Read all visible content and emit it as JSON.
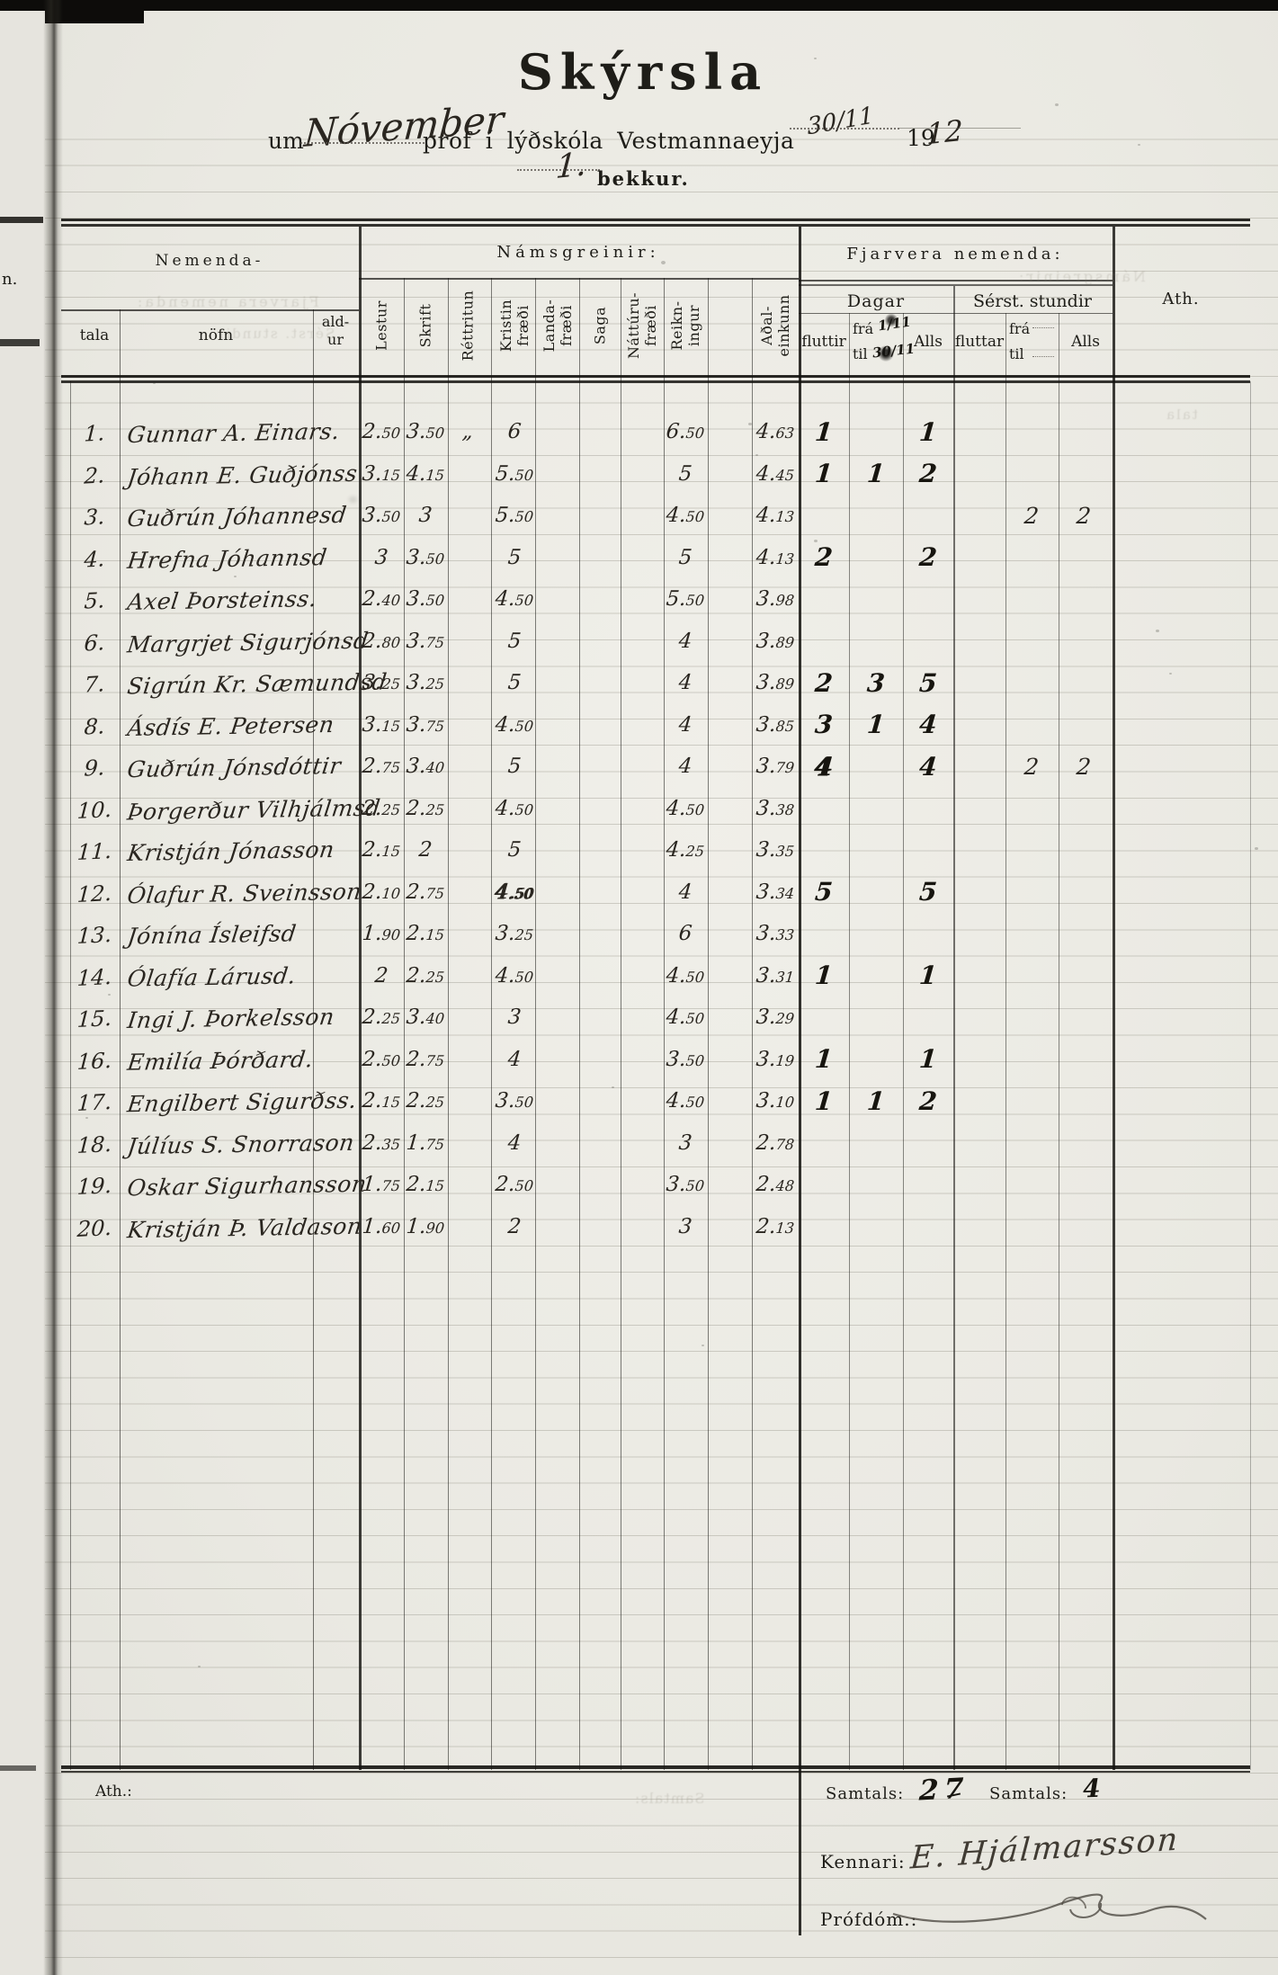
{
  "page": {
    "title": "Skýrsla",
    "subtitle_prefix": "um",
    "subtitle_month": "Nóvember",
    "subtitle_mid": "próf í lýðskóla Vestmannaeyja",
    "subtitle_date": "30/11",
    "year_printed": "19",
    "year_hand": "12",
    "class_number": "1.",
    "class_label": "bekkur."
  },
  "margin": {
    "fragment_text": "n."
  },
  "header": {
    "group_students": "Nemenda-",
    "col_tala": "tala",
    "col_nofn": "nöfn",
    "col_aldur_line1": "ald-",
    "col_aldur_line2": "ur",
    "group_subjects": "Námsgreinir:",
    "subjects": [
      "Lestur",
      "Skrift",
      "Réttritun",
      "Kristin\nfræði",
      "Landa-\nfræði",
      "Saga",
      "Náttúru-\nfræði",
      "Reikn-\ningur",
      "",
      "Aðal-\neinkunn"
    ],
    "group_absence": "Fjarvera nemenda:",
    "absence_days": "Dagar",
    "absence_hours": "Sérst. stundir",
    "days_fluttir": "fluttir",
    "days_fra": "frá",
    "days_til": "til",
    "days_fra_value": "1/11",
    "days_til_value": "30/11",
    "days_alls": "Alls",
    "hours_fluttar": "fluttar",
    "hours_fra": "frá",
    "hours_til": "til",
    "hours_alls": "Alls",
    "col_ath": "Ath."
  },
  "rows": [
    {
      "num": "1.",
      "name": "Gunnar A. Einars.",
      "lestur": "2.50",
      "skrift": "3.50",
      "rettritun": "„",
      "kristin": "6",
      "landafraedi": "",
      "saga": "",
      "natturufraedi": "",
      "reikningur": "6.50",
      "adaleinkunn": "4.63",
      "d_fluttir": "1",
      "d_fra_til": "",
      "d_alls": "1",
      "s_fluttar": "",
      "s_fra_til": "",
      "s_alls": "",
      "ath": ""
    },
    {
      "num": "2.",
      "name": "Jóhann E. Guðjónss",
      "lestur": "3.15",
      "skrift": "4.15",
      "rettritun": "",
      "kristin": "5.50",
      "landafraedi": "",
      "saga": "",
      "natturufraedi": "",
      "reikningur": "5",
      "adaleinkunn": "4.45",
      "d_fluttir": "1",
      "d_fra_til": "1",
      "d_alls": "2",
      "s_fluttar": "",
      "s_fra_til": "",
      "s_alls": "",
      "ath": ""
    },
    {
      "num": "3.",
      "name": "Guðrún Jóhannesd",
      "lestur": "3.50",
      "skrift": "3",
      "rettritun": "",
      "kristin": "5.50",
      "landafraedi": "",
      "saga": "",
      "natturufraedi": "",
      "reikningur": "4.50",
      "adaleinkunn": "4.13",
      "d_fluttir": "",
      "d_fra_til": "",
      "d_alls": "",
      "s_fluttar": "",
      "s_fra_til": "2",
      "s_alls": "2",
      "ath": ""
    },
    {
      "num": "4.",
      "name": "Hrefna Jóhannsd",
      "lestur": "3",
      "skrift": "3.50",
      "rettritun": "",
      "kristin": "5",
      "landafraedi": "",
      "saga": "",
      "natturufraedi": "",
      "reikningur": "5",
      "adaleinkunn": "4.13",
      "d_fluttir": "2",
      "d_fra_til": "",
      "d_alls": "2",
      "s_fluttar": "",
      "s_fra_til": "",
      "s_alls": "",
      "ath": ""
    },
    {
      "num": "5.",
      "name": "Axel Þorsteinss.",
      "lestur": "2.40",
      "skrift": "3.50",
      "rettritun": "",
      "kristin": "4.50",
      "landafraedi": "",
      "saga": "",
      "natturufraedi": "",
      "reikningur": "5.50",
      "adaleinkunn": "3.98",
      "d_fluttir": "",
      "d_fra_til": "",
      "d_alls": "",
      "s_fluttar": "",
      "s_fra_til": "",
      "s_alls": "",
      "ath": ""
    },
    {
      "num": "6.",
      "name": "Margrjet Sigurjónsd",
      "lestur": "2.80",
      "skrift": "3.75",
      "rettritun": "",
      "kristin": "5",
      "landafraedi": "",
      "saga": "",
      "natturufraedi": "",
      "reikningur": "4",
      "adaleinkunn": "3.89",
      "d_fluttir": "",
      "d_fra_til": "",
      "d_alls": "",
      "s_fluttar": "",
      "s_fra_til": "",
      "s_alls": "",
      "ath": ""
    },
    {
      "num": "7.",
      "name": "Sigrún Kr. Sæmundsd",
      "lestur": "3.25",
      "skrift": "3.25",
      "rettritun": "",
      "kristin": "5",
      "landafraedi": "",
      "saga": "",
      "natturufraedi": "",
      "reikningur": "4",
      "adaleinkunn": "3.89",
      "d_fluttir": "2",
      "d_fra_til": "3",
      "d_alls": "5",
      "s_fluttar": "",
      "s_fra_til": "",
      "s_alls": "",
      "ath": ""
    },
    {
      "num": "8.",
      "name": "Ásdís E. Petersen",
      "lestur": "3.15",
      "skrift": "3.75",
      "rettritun": "",
      "kristin": "4.50",
      "landafraedi": "",
      "saga": "",
      "natturufraedi": "",
      "reikningur": "4",
      "adaleinkunn": "3.85",
      "d_fluttir": "3",
      "d_fra_til": "1",
      "d_alls": "4",
      "s_fluttar": "",
      "s_fra_til": "",
      "s_alls": "",
      "ath": ""
    },
    {
      "num": "9.",
      "name": "Guðrún Jónsdóttir",
      "lestur": "2.75",
      "skrift": "3.40",
      "rettritun": "",
      "kristin": "5",
      "landafraedi": "",
      "saga": "",
      "natturufraedi": "",
      "reikningur": "4",
      "adaleinkunn": "3.79",
      "d_fluttir": "4",
      "d_fra_til": "",
      "d_alls": "4",
      "s_fluttar": "",
      "s_fra_til": "2",
      "s_alls": "2",
      "ath": "",
      "bold_cells": [
        "d_fluttir"
      ]
    },
    {
      "num": "10.",
      "name": "Þorgerður Vilhjálmsd",
      "lestur": "2.25",
      "skrift": "2.25",
      "rettritun": "",
      "kristin": "4.50",
      "landafraedi": "",
      "saga": "",
      "natturufraedi": "",
      "reikningur": "4.50",
      "adaleinkunn": "3.38",
      "d_fluttir": "",
      "d_fra_til": "",
      "d_alls": "",
      "s_fluttar": "",
      "s_fra_til": "",
      "s_alls": "",
      "ath": ""
    },
    {
      "num": "11.",
      "name": "Kristján Jónasson",
      "lestur": "2.15",
      "skrift": "2",
      "rettritun": "",
      "kristin": "5",
      "landafraedi": "",
      "saga": "",
      "natturufraedi": "",
      "reikningur": "4.25",
      "adaleinkunn": "3.35",
      "d_fluttir": "",
      "d_fra_til": "",
      "d_alls": "",
      "s_fluttar": "",
      "s_fra_til": "",
      "s_alls": "",
      "ath": ""
    },
    {
      "num": "12.",
      "name": "Ólafur R. Sveinsson",
      "lestur": "2.10",
      "skrift": "2.75",
      "rettritun": "",
      "kristin": "4.50",
      "landafraedi": "",
      "saga": "",
      "natturufraedi": "",
      "reikningur": "4",
      "adaleinkunn": "3.34",
      "d_fluttir": "5",
      "d_fra_til": "",
      "d_alls": "5",
      "s_fluttar": "",
      "s_fra_til": "",
      "s_alls": "",
      "ath": "",
      "bold_cells": [
        "kristin"
      ]
    },
    {
      "num": "13.",
      "name": "Jónína Ísleifsd",
      "lestur": "1.90",
      "skrift": "2.15",
      "rettritun": "",
      "kristin": "3.25",
      "landafraedi": "",
      "saga": "",
      "natturufraedi": "",
      "reikningur": "6",
      "adaleinkunn": "3.33",
      "d_fluttir": "",
      "d_fra_til": "",
      "d_alls": "",
      "s_fluttar": "",
      "s_fra_til": "",
      "s_alls": "",
      "ath": ""
    },
    {
      "num": "14.",
      "name": "Ólafía Lárusd.",
      "lestur": "2",
      "skrift": "2.25",
      "rettritun": "",
      "kristin": "4.50",
      "landafraedi": "",
      "saga": "",
      "natturufraedi": "",
      "reikningur": "4.50",
      "adaleinkunn": "3.31",
      "d_fluttir": "1",
      "d_fra_til": "",
      "d_alls": "1",
      "s_fluttar": "",
      "s_fra_til": "",
      "s_alls": "",
      "ath": ""
    },
    {
      "num": "15.",
      "name": "Ingi J. Þorkelsson",
      "lestur": "2.25",
      "skrift": "3.40",
      "rettritun": "",
      "kristin": "3",
      "landafraedi": "",
      "saga": "",
      "natturufraedi": "",
      "reikningur": "4.50",
      "adaleinkunn": "3.29",
      "d_fluttir": "",
      "d_fra_til": "",
      "d_alls": "",
      "s_fluttar": "",
      "s_fra_til": "",
      "s_alls": "",
      "ath": ""
    },
    {
      "num": "16.",
      "name": "Emilía Þórðard.",
      "lestur": "2.50",
      "skrift": "2.75",
      "rettritun": "",
      "kristin": "4",
      "landafraedi": "",
      "saga": "",
      "natturufraedi": "",
      "reikningur": "3.50",
      "adaleinkunn": "3.19",
      "d_fluttir": "1",
      "d_fra_til": "",
      "d_alls": "1",
      "s_fluttar": "",
      "s_fra_til": "",
      "s_alls": "",
      "ath": ""
    },
    {
      "num": "17.",
      "name": "Engilbert Sigurðss.",
      "lestur": "2.15",
      "skrift": "2.25",
      "rettritun": "",
      "kristin": "3.50",
      "landafraedi": "",
      "saga": "",
      "natturufraedi": "",
      "reikningur": "4.50",
      "adaleinkunn": "3.10",
      "d_fluttir": "1",
      "d_fra_til": "1",
      "d_alls": "2",
      "s_fluttar": "",
      "s_fra_til": "",
      "s_alls": "",
      "ath": ""
    },
    {
      "num": "18.",
      "name": "Júlíus S. Snorrason",
      "lestur": "2.35",
      "skrift": "1.75",
      "rettritun": "",
      "kristin": "4",
      "landafraedi": "",
      "saga": "",
      "natturufraedi": "",
      "reikningur": "3",
      "adaleinkunn": "2.78",
      "d_fluttir": "",
      "d_fra_til": "",
      "d_alls": "",
      "s_fluttar": "",
      "s_fra_til": "",
      "s_alls": "",
      "ath": ""
    },
    {
      "num": "19.",
      "name": "Oskar Sigurhansson",
      "lestur": "1.75",
      "skrift": "2.15",
      "rettritun": "",
      "kristin": "2.50",
      "landafraedi": "",
      "saga": "",
      "natturufraedi": "",
      "reikningur": "3.50",
      "adaleinkunn": "2.48",
      "d_fluttir": "",
      "d_fra_til": "",
      "d_alls": "",
      "s_fluttar": "",
      "s_fra_til": "",
      "s_alls": "",
      "ath": ""
    },
    {
      "num": "20.",
      "name": "Kristján Þ. Valdason",
      "lestur": "1.60",
      "skrift": "1.90",
      "rettritun": "",
      "kristin": "2",
      "landafraedi": "",
      "saga": "",
      "natturufraedi": "",
      "reikningur": "3",
      "adaleinkunn": "2.13",
      "d_fluttir": "",
      "d_fra_til": "",
      "d_alls": "",
      "s_fluttar": "",
      "s_fra_til": "",
      "s_alls": "",
      "ath": ""
    }
  ],
  "footer": {
    "ath_label": "Ath.:",
    "samtals_days_label": "Samtals:",
    "samtals_days_value": "27",
    "samtals_hours_label": "Samtals:",
    "samtals_hours_value": "4",
    "kennari_label": "Kennari:",
    "kennari_signature": "E. Hjálmarsson",
    "profdom_label": "Prófdóm.:"
  },
  "ghosts": [
    "Fjarvera nemenda:",
    "Sérst. stundir",
    "Námsgreinir:",
    "tala",
    "Samtals:"
  ],
  "colors": {
    "ink": "#2a2620",
    "printed_ink": "#1e1d18",
    "paper": "#ecebe5",
    "rule": "#14130f"
  }
}
